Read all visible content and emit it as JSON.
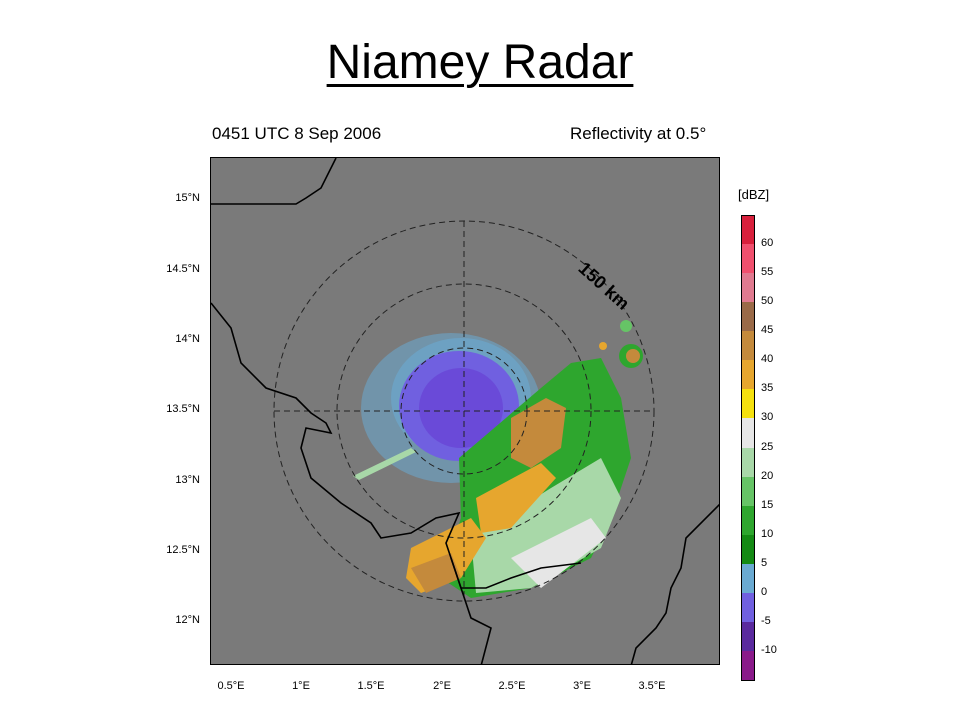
{
  "slide": {
    "title": "Niamey Radar"
  },
  "figure": {
    "time_label": "0451 UTC 8 Sep 2006",
    "field_label": "Reflectivity at 0.5°",
    "range_ring_label": "150 km",
    "lat_ticks": [
      "15°N",
      "14.5°N",
      "14°N",
      "13.5°N",
      "13°N",
      "12.5°N",
      "12°N"
    ],
    "lon_ticks": [
      "0.5°E",
      "1°E",
      "1.5°E",
      "2°E",
      "2.5°E",
      "3°E",
      "3.5°E"
    ],
    "background_color": "#7a7a7a",
    "border_color": "#000000"
  },
  "colorbar": {
    "unit": "[dBZ]",
    "levels": [
      "60",
      "55",
      "50",
      "45",
      "40",
      "35",
      "30",
      "25",
      "20",
      "15",
      "10",
      "5",
      "0",
      "-5",
      "-10"
    ],
    "colors": [
      "#d8203c",
      "#f0506e",
      "#e07a90",
      "#9a6a48",
      "#c48a3c",
      "#e6a62e",
      "#f5e10e",
      "#e6e6e6",
      "#a8d8a8",
      "#66c466",
      "#2ea62e",
      "#148a14",
      "#6aaad2",
      "#7060e0",
      "#5a2a9e",
      "#8a1a8a"
    ]
  }
}
